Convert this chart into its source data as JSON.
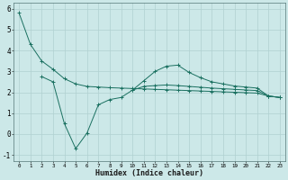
{
  "xlabel": "Humidex (Indice chaleur)",
  "background_color": "#cce8e8",
  "grid_color": "#b0d0d0",
  "line_color": "#1a7060",
  "x_values": [
    0,
    1,
    2,
    3,
    4,
    5,
    6,
    7,
    8,
    9,
    10,
    11,
    12,
    13,
    14,
    15,
    16,
    17,
    18,
    19,
    20,
    21,
    22,
    23
  ],
  "line_main_y": [
    5.8,
    4.3,
    3.5,
    3.1,
    2.65,
    2.4,
    2.28,
    2.25,
    2.22,
    2.2,
    2.18,
    2.16,
    2.14,
    2.12,
    2.1,
    2.08,
    2.06,
    2.04,
    2.02,
    2.0,
    1.98,
    1.96,
    1.82,
    1.75
  ],
  "line2_y": [
    null,
    null,
    2.75,
    2.5,
    0.5,
    -0.7,
    0.05,
    1.4,
    1.65,
    1.75,
    2.1,
    2.55,
    3.0,
    3.25,
    3.3,
    2.95,
    2.7,
    2.5,
    2.4,
    2.3,
    2.25,
    2.2,
    1.82,
    1.75
  ],
  "line3_y": [
    null,
    null,
    null,
    null,
    null,
    null,
    null,
    null,
    null,
    null,
    2.1,
    2.28,
    2.32,
    2.35,
    2.32,
    2.28,
    2.24,
    2.2,
    2.17,
    2.14,
    2.11,
    2.08,
    1.82,
    1.75
  ],
  "ylim": [
    -1.3,
    6.3
  ],
  "xlim": [
    -0.5,
    23.5
  ],
  "yticks": [
    -1,
    0,
    1,
    2,
    3,
    4,
    5,
    6
  ]
}
